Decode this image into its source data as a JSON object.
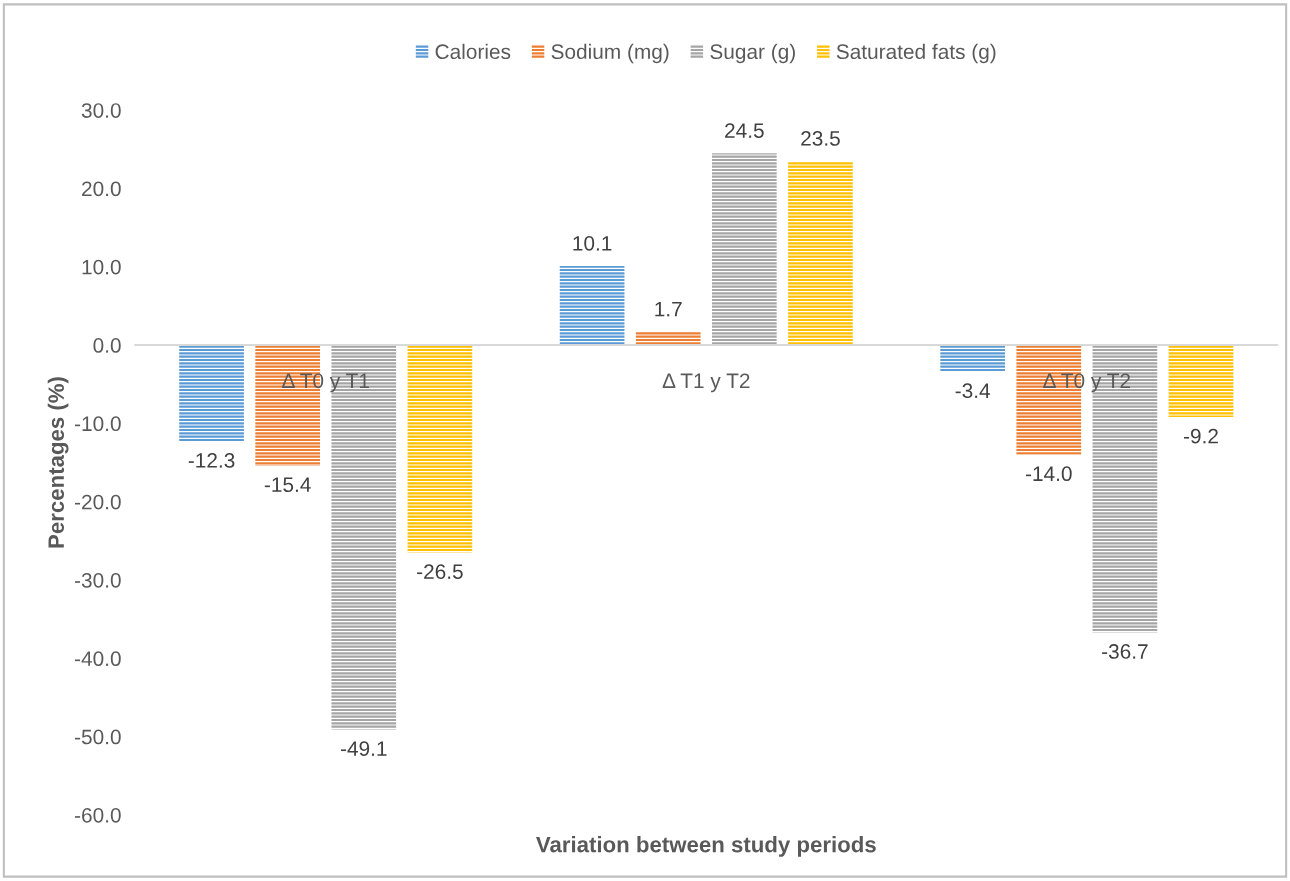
{
  "chart_data": {
    "type": "bar",
    "xlabel": "Variation between study periods",
    "ylabel": "Percentages (%)",
    "categories": [
      "Δ T0 y T1",
      "Δ T1 y T2",
      "Δ T0 y T2"
    ],
    "series": [
      {
        "name": "Calories",
        "color": "#5b9bd5",
        "values": [
          -12.3,
          10.1,
          -3.4
        ],
        "value_labels": [
          "-12.3",
          "10.1",
          "-3.4"
        ]
      },
      {
        "name": "Sodium (mg)",
        "color": "#ed7d31",
        "values": [
          -15.4,
          1.7,
          -14.0
        ],
        "value_labels": [
          "-15.4",
          "1.7",
          "-14.0"
        ]
      },
      {
        "name": "Sugar (g)",
        "color": "#a5a5a5",
        "values": [
          -49.1,
          24.5,
          -36.7
        ],
        "value_labels": [
          "-49.1",
          "24.5",
          "-36.7"
        ]
      },
      {
        "name": "Saturated fats (g)",
        "color": "#ffc000",
        "values": [
          -26.5,
          23.5,
          -9.2
        ],
        "value_labels": [
          "-26.5",
          "23.5",
          "-9.2"
        ]
      }
    ],
    "ylim": [
      -60,
      30
    ],
    "yticks": [
      {
        "value": -60,
        "label": "-60.0"
      },
      {
        "value": -50,
        "label": "-50.0"
      },
      {
        "value": -40,
        "label": "-40.0"
      },
      {
        "value": -30,
        "label": "-30.0"
      },
      {
        "value": -20,
        "label": "-20.0"
      },
      {
        "value": -10,
        "label": "-10.0"
      },
      {
        "value": 0,
        "label": "0.0"
      },
      {
        "value": 10,
        "label": "10.0"
      },
      {
        "value": 20,
        "label": "20.0"
      },
      {
        "value": 30,
        "label": "30.0"
      }
    ],
    "legend": "top",
    "grid": false
  }
}
